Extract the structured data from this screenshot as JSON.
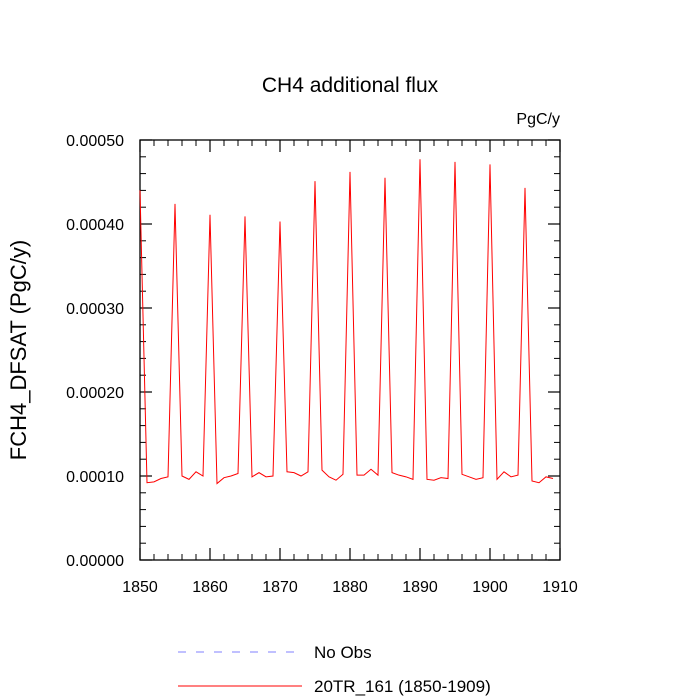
{
  "chart_data": {
    "type": "line",
    "title": "CH4 additional flux",
    "units": "PgC/y",
    "xlabel": "",
    "ylabel": "FCH4_DFSAT  (PgC/y)",
    "xlim": [
      1850,
      1910
    ],
    "ylim": [
      0,
      0.0005
    ],
    "xticks": [
      1850,
      1860,
      1870,
      1880,
      1890,
      1900,
      1910
    ],
    "xtick_labels": [
      "1850",
      "1860",
      "1870",
      "1880",
      "1890",
      "1900",
      "1910"
    ],
    "yticks": [
      0,
      0.0001,
      0.0002,
      0.0003,
      0.0004,
      0.0005
    ],
    "ytick_labels": [
      "0.00000",
      "0.00010",
      "0.00020",
      "0.00030",
      "0.00040",
      "0.00050"
    ],
    "grid": false,
    "legend_position": "bottom",
    "series": [
      {
        "name": "No Obs",
        "color": "#8080ff",
        "style": "dashed",
        "x": [],
        "values": []
      },
      {
        "name": "20TR_161 (1850-1909)",
        "color": "#ff0000",
        "style": "solid",
        "x": [
          1850,
          1851,
          1852,
          1853,
          1854,
          1855,
          1856,
          1857,
          1858,
          1859,
          1860,
          1861,
          1862,
          1863,
          1864,
          1865,
          1866,
          1867,
          1868,
          1869,
          1870,
          1871,
          1872,
          1873,
          1874,
          1875,
          1876,
          1877,
          1878,
          1879,
          1880,
          1881,
          1882,
          1883,
          1884,
          1885,
          1886,
          1887,
          1888,
          1889,
          1890,
          1891,
          1892,
          1893,
          1894,
          1895,
          1896,
          1897,
          1898,
          1899,
          1900,
          1901,
          1902,
          1903,
          1904,
          1905,
          1906,
          1907,
          1908,
          1909
        ],
        "values": [
          0.00044,
          9.2e-05,
          9.3e-05,
          9.7e-05,
          9.9e-05,
          0.000424,
          0.0001,
          9.6e-05,
          0.000105,
          0.0001,
          0.000411,
          9.1e-05,
          9.8e-05,
          0.0001,
          0.000103,
          0.000409,
          9.9e-05,
          0.000104,
          9.9e-05,
          0.0001,
          0.000403,
          0.000105,
          0.000104,
          0.0001,
          0.000105,
          0.000451,
          0.000107,
          9.9e-05,
          9.5e-05,
          0.000102,
          0.000462,
          0.000101,
          0.000101,
          0.000108,
          0.000101,
          0.000455,
          0.000104,
          0.000101,
          9.9e-05,
          9.6e-05,
          0.000477,
          9.6e-05,
          9.5e-05,
          9.8e-05,
          9.7e-05,
          0.000474,
          0.000102,
          9.9e-05,
          9.6e-05,
          9.8e-05,
          0.000471,
          9.6e-05,
          0.000105,
          9.9e-05,
          0.000101,
          0.000443,
          9.4e-05,
          9.2e-05,
          9.9e-05,
          9.7e-05
        ]
      }
    ]
  }
}
